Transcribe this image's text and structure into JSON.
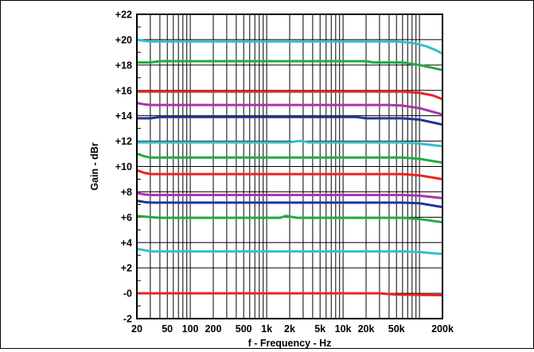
{
  "chart_data": {
    "type": "line",
    "title": "",
    "xlabel": "f - Frequency - Hz",
    "ylabel": "Gain - dBr",
    "x_scale": "log",
    "xlim": [
      20,
      200000
    ],
    "ylim": [
      -2,
      22
    ],
    "grid": true,
    "legend": "none",
    "x_ticks": [
      {
        "value": 20,
        "label": "20"
      },
      {
        "value": 50,
        "label": "50"
      },
      {
        "value": 100,
        "label": "100"
      },
      {
        "value": 200,
        "label": "200"
      },
      {
        "value": 500,
        "label": "500"
      },
      {
        "value": 1000,
        "label": "1k"
      },
      {
        "value": 2000,
        "label": "2k"
      },
      {
        "value": 5000,
        "label": "5k"
      },
      {
        "value": 10000,
        "label": "10k"
      },
      {
        "value": 20000,
        "label": "20k"
      },
      {
        "value": 50000,
        "label": "50k"
      },
      {
        "value": 200000,
        "label": "200k"
      }
    ],
    "y_ticks": [
      {
        "value": 22,
        "label": "+22"
      },
      {
        "value": 20,
        "label": "+20"
      },
      {
        "value": 18,
        "label": "+18"
      },
      {
        "value": 16,
        "label": "+16"
      },
      {
        "value": 14,
        "label": "+14"
      },
      {
        "value": 12,
        "label": "+12"
      },
      {
        "value": 10,
        "label": "+10"
      },
      {
        "value": 8,
        "label": "+8"
      },
      {
        "value": 6,
        "label": "+6"
      },
      {
        "value": 4,
        "label": "+4"
      },
      {
        "value": 2,
        "label": "+2"
      },
      {
        "value": 0,
        "label": "-0"
      },
      {
        "value": -2,
        "label": "-2"
      }
    ],
    "series": [
      {
        "color": "#33c0c8",
        "x": [
          20,
          25,
          30,
          50000,
          80000,
          120000,
          160000,
          200000
        ],
        "y": [
          20.0,
          19.9,
          19.85,
          19.85,
          19.75,
          19.5,
          19.2,
          18.9
        ]
      },
      {
        "color": "#22aa44",
        "x": [
          20,
          30,
          40,
          20000,
          25000,
          60000,
          100000,
          200000
        ],
        "y": [
          18.2,
          18.2,
          18.3,
          18.3,
          18.2,
          18.2,
          18.0,
          17.6
        ]
      },
      {
        "color": "#ee2222",
        "x": [
          20,
          60000,
          100000,
          150000,
          200000
        ],
        "y": [
          15.9,
          15.9,
          15.8,
          15.6,
          15.3
        ]
      },
      {
        "color": "#aa33aa",
        "x": [
          20,
          25,
          30,
          40000,
          60000,
          100000,
          200000
        ],
        "y": [
          15.0,
          14.9,
          14.85,
          14.85,
          14.8,
          14.6,
          14.1
        ]
      },
      {
        "color": "#223399",
        "x": [
          20,
          30,
          40,
          15000,
          20000,
          60000,
          100000,
          200000
        ],
        "y": [
          13.8,
          13.8,
          13.9,
          13.9,
          13.8,
          13.8,
          13.7,
          13.3
        ]
      },
      {
        "color": "#33c0c8",
        "x": [
          20,
          2000,
          2500,
          3000,
          3500,
          60000,
          100000,
          200000
        ],
        "y": [
          11.9,
          11.9,
          12.0,
          12.0,
          11.9,
          11.9,
          11.8,
          11.6
        ]
      },
      {
        "color": "#22aa44",
        "x": [
          20,
          25,
          30,
          60000,
          100000,
          200000
        ],
        "y": [
          11.0,
          10.8,
          10.7,
          10.7,
          10.6,
          10.3
        ]
      },
      {
        "color": "#ee2222",
        "x": [
          20,
          25,
          30,
          60000,
          100000,
          200000
        ],
        "y": [
          9.7,
          9.5,
          9.4,
          9.4,
          9.3,
          9.0
        ]
      },
      {
        "color": "#aa33aa",
        "x": [
          20,
          25,
          30,
          60000,
          100000,
          200000
        ],
        "y": [
          7.9,
          7.8,
          7.75,
          7.75,
          7.7,
          7.5
        ]
      },
      {
        "color": "#223399",
        "x": [
          20,
          25,
          30,
          60000,
          100000,
          200000
        ],
        "y": [
          7.3,
          7.2,
          7.15,
          7.15,
          7.1,
          6.8
        ]
      },
      {
        "color": "#22aa44",
        "x": [
          20,
          30,
          40,
          1500,
          1800,
          2000,
          2500,
          60000,
          100000,
          200000
        ],
        "y": [
          6.1,
          6.0,
          5.95,
          5.95,
          6.1,
          6.05,
          5.95,
          5.95,
          5.85,
          5.6
        ]
      },
      {
        "color": "#33c0c8",
        "x": [
          20,
          25,
          30,
          60000,
          100000,
          200000
        ],
        "y": [
          3.5,
          3.4,
          3.3,
          3.3,
          3.25,
          3.1
        ]
      },
      {
        "color": "#ee2222",
        "x": [
          20,
          30000,
          50000,
          200000
        ],
        "y": [
          0.0,
          0.0,
          -0.1,
          -0.15
        ]
      }
    ]
  }
}
